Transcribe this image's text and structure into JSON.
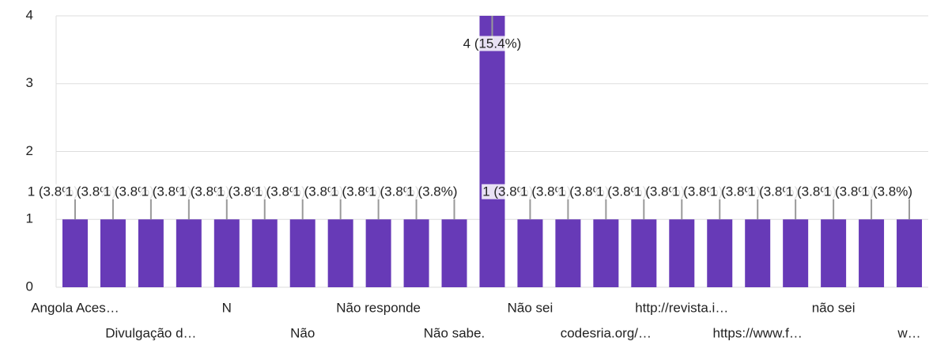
{
  "chart_data": {
    "type": "bar",
    "categories": [
      "Angola Aces…",
      null,
      "Divulgação d…",
      null,
      "N",
      null,
      "Não",
      null,
      "Não responde",
      null,
      "Não sabe.",
      null,
      "Não sei",
      null,
      "codesria.org/…",
      null,
      "http://revista.i…",
      null,
      "https://www.f…",
      null,
      "não sei",
      null,
      "w…"
    ],
    "values": [
      1,
      1,
      1,
      1,
      1,
      1,
      1,
      1,
      1,
      1,
      1,
      4,
      1,
      1,
      1,
      1,
      1,
      1,
      1,
      1,
      1,
      1,
      1
    ],
    "value_labels": [
      "1 (3.8%)",
      "1 (3.8%)",
      "1 (3.8%)",
      "1 (3.8%)",
      "1 (3.8%)",
      "1 (3.8%)",
      "1 (3.8%)",
      "1 (3.8%)",
      "1 (3.8%)",
      "1 (3.8%)",
      "1 (3.8%)",
      "4 (15.4%)",
      "1 (3.8%)",
      "1 (3.8%)",
      "1 (3.8%)",
      "1 (3.8%)",
      "1 (3.8%)",
      "1 (3.8%)",
      "1 (3.8%)",
      "1 (3.8%)",
      "1 (3.8%)",
      "1 (3.8%)",
      "1 (3.8%)"
    ],
    "color": "#673ab7",
    "ylim": [
      0,
      4
    ],
    "yticks": [
      0,
      1,
      2,
      3,
      4
    ],
    "grid": true
  }
}
